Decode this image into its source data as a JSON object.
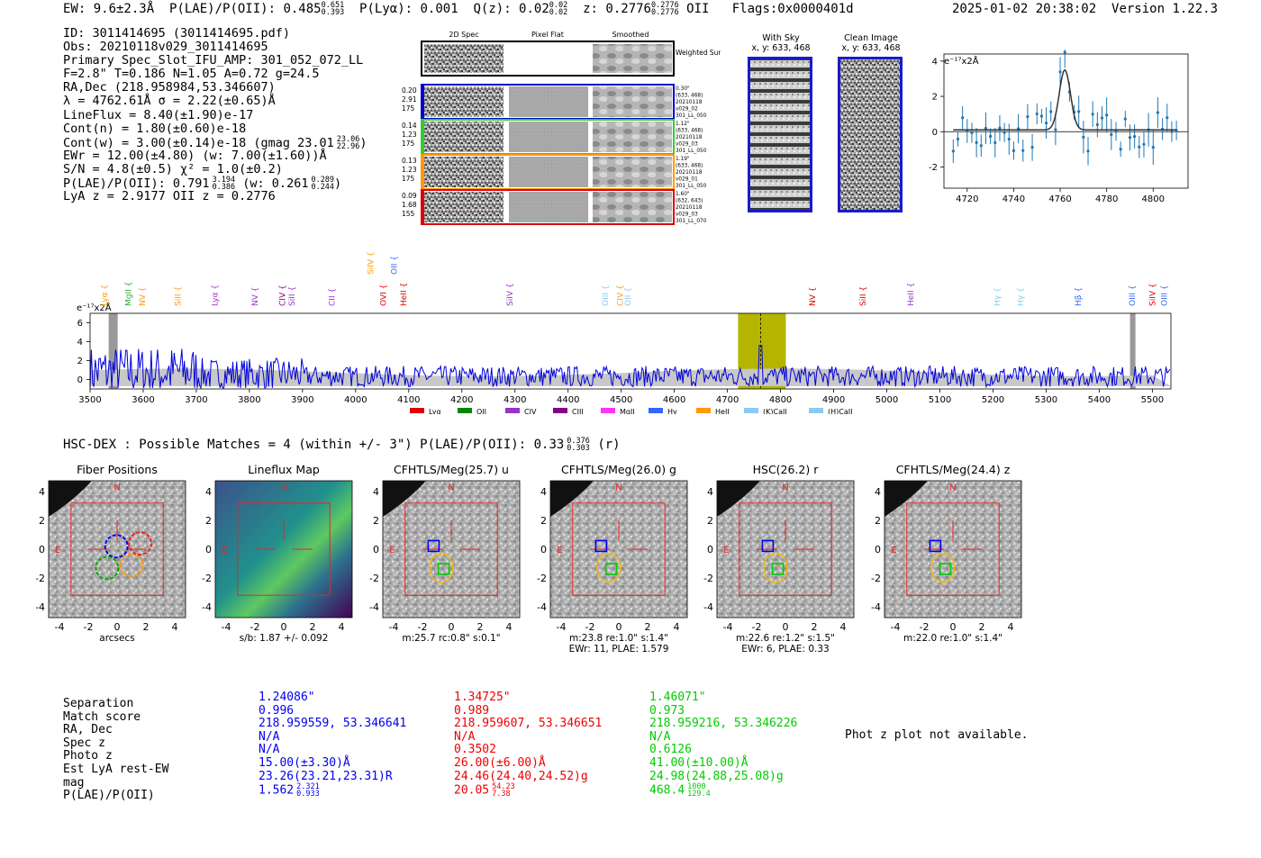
{
  "header": {
    "ew": "EW: 9.6±2.3Å",
    "plae_label": "P(LAE)/P(OII): 0.485",
    "plae_hi": "0.651",
    "plae_lo": "0.393",
    "plya": "P(Lyα): 0.001",
    "qz_label": "Q(z): 0.02",
    "qz_hi": "0.02",
    "qz_lo": "0.02",
    "z_label": "z: 0.2776",
    "z_hi": "0.2776",
    "z_lo": "0.2776",
    "z_line": "OII",
    "flags": "Flags:0x0000401d",
    "datetime": "2025-01-02 20:38:02",
    "version": "Version 1.22.3"
  },
  "info": {
    "id": "ID: 3011414695 (3011414695.pdf)",
    "obs": "Obs: 20210118v029_3011414695",
    "primary": "Primary Spec_Slot_IFU_AMP: 301_052_072_LL",
    "fit": "F=2.8\"  T=0.186  N=1.05  A=0.72  g=24.5",
    "radec": "RA,Dec (218.958984,53.346607)",
    "lambda": "λ = 4762.61Å  σ = 2.22(±0.65)Å",
    "lineflux": "LineFlux = 8.40(±1.90)e-17",
    "cont_n": "Cont(n) = 1.80(±0.60)e-18",
    "cont_w": "Cont(w) = 3.00(±0.14)e-18 (gmag 23.01",
    "cont_w_hi": "23.06",
    "cont_w_lo": "22.96",
    "ewr": "EWr = 12.00(±4.80) (w: 7.00(±1.60))Å",
    "sn": "S/N = 4.8(±0.5)  χ² = 1.0(±0.2)",
    "plae": "P(LAE)/P(OII): 0.791",
    "plae_hi": "3.194",
    "plae_lo": "0.386",
    "plae_w": "(w: 0.261",
    "plae_w_hi": "0.289",
    "plae_w_lo": "0.244",
    "lya_z": "LyA z = 2.9177   OII z = 0.2776"
  },
  "spec2d": {
    "col_titles": [
      "2D Spec",
      "Pixel Flat",
      "Smoothed"
    ],
    "weighted_sum": "Weighted Sum",
    "fibers": [
      {
        "color": "#0000cc",
        "left": [
          "0.20",
          "2.91",
          "175"
        ],
        "right": [
          "0.30\"",
          "(633, 468)",
          "20210118",
          "v029_02",
          "301_LL_050"
        ]
      },
      {
        "color": "#33cc33",
        "left": [
          "0.14",
          "1.23",
          "175"
        ],
        "right": [
          "1.12\"",
          "(633, 468)",
          "20210118",
          "v029_03",
          "301_LL_050"
        ]
      },
      {
        "color": "#ff9900",
        "left": [
          "0.13",
          "1.23",
          "175"
        ],
        "right": [
          "1.19\"",
          "(633, 468)",
          "20210118",
          "v029_01",
          "301_LL_050"
        ]
      },
      {
        "color": "#dd0000",
        "left": [
          "0.09",
          "1.68",
          "155"
        ],
        "right": [
          "1.60\"",
          "(632, 643)",
          "20210118",
          "v029_03",
          "301_LL_070"
        ]
      }
    ]
  },
  "skyimg": {
    "with_sky": "With Sky",
    "with_sky_xy": "x, y: 633, 468",
    "clean": "Clean Image",
    "clean_xy": "x, y: 633, 468"
  },
  "zoom_spec": {
    "unit": "e⁻¹⁷x2Å",
    "x_ticks": [
      4720,
      4740,
      4760,
      4780,
      4800
    ],
    "y_ticks": [
      -2,
      0,
      2,
      4
    ],
    "x_range": [
      4710,
      4815
    ],
    "y_range": [
      -3.2,
      4.4
    ],
    "color": "#1f77b4"
  },
  "full_spec": {
    "unit": "e⁻¹⁷x2Å",
    "x_ticks": [
      3500,
      3600,
      3700,
      3800,
      3900,
      4000,
      4100,
      4200,
      4300,
      4400,
      4500,
      4600,
      4700,
      4800,
      4900,
      5000,
      5100,
      5200,
      5300,
      5400,
      5500
    ],
    "y_ticks": [
      0,
      2,
      4,
      6
    ],
    "x_range": [
      3500,
      5535
    ],
    "y_range": [
      -1,
      7
    ],
    "highlight": [
      4720,
      4810
    ],
    "line_marker": 4762.6,
    "line_labels": [
      {
        "t": "Lyα",
        "w": 3527,
        "c": "#ff9900"
      },
      {
        "t": "MgII",
        "w": 3572,
        "c": "#33aa33"
      },
      {
        "t": "NV",
        "w": 3598,
        "c": "#ff9900"
      },
      {
        "t": "SiII",
        "w": 3665,
        "c": "#ff9900"
      },
      {
        "t": "Lyα",
        "w": 3735,
        "c": "#9933cc"
      },
      {
        "t": "NV",
        "w": 3810,
        "c": "#9933cc"
      },
      {
        "t": "CIV",
        "w": 3862,
        "c": "#880088"
      },
      {
        "t": "SiII",
        "w": 3880,
        "c": "#9933cc"
      },
      {
        "t": "CII",
        "w": 3955,
        "c": "#9933cc"
      },
      {
        "t": "OVI",
        "w": 4052,
        "c": "#dd0000"
      },
      {
        "t": "HeII",
        "w": 4090,
        "c": "#dd0000"
      },
      {
        "t": "SiIV",
        "w": 4028,
        "c": "#ff9900",
        "high": true
      },
      {
        "t": "OII",
        "w": 4072,
        "c": "#3366ff",
        "high": true
      },
      {
        "t": "SiIV",
        "w": 4290,
        "c": "#9933cc"
      },
      {
        "t": "OIII",
        "w": 4470,
        "c": "#88ccee"
      },
      {
        "t": "CIV",
        "w": 4498,
        "c": "#ff9900"
      },
      {
        "t": "OII",
        "w": 4512,
        "c": "#88ccee"
      },
      {
        "t": "NV",
        "w": 4860,
        "c": "#dd0000"
      },
      {
        "t": "SiII",
        "w": 4955,
        "c": "#dd0000"
      },
      {
        "t": "HeII",
        "w": 5045,
        "c": "#9933cc"
      },
      {
        "t": "Hγ",
        "w": 5208,
        "c": "#88ccee"
      },
      {
        "t": "Hγ",
        "w": 5252,
        "c": "#88ccee"
      },
      {
        "t": "Hβ",
        "w": 5360,
        "c": "#3366ff"
      },
      {
        "t": "OIII",
        "w": 5462,
        "c": "#3366ff"
      },
      {
        "t": "SiIV",
        "w": 5500,
        "c": "#dd0000"
      },
      {
        "t": "OIII",
        "w": 5522,
        "c": "#3366ff"
      }
    ],
    "legend": [
      {
        "t": "Lyα",
        "c": "#dd0000"
      },
      {
        "t": "OII",
        "c": "#008800"
      },
      {
        "t": "CIV",
        "c": "#9933cc"
      },
      {
        "t": "CIII",
        "c": "#880088"
      },
      {
        "t": "MgII",
        "c": "#ff33ff"
      },
      {
        "t": "Hγ",
        "c": "#3366ff"
      },
      {
        "t": "HeII",
        "c": "#ff9900"
      },
      {
        "t": "(K)CaII",
        "c": "#88ccee"
      },
      {
        "t": "(H)CaII",
        "c": "#88ccee"
      }
    ]
  },
  "hsc": {
    "title": "HSC-DEX : Possible Matches = 4 (within +/- 3\")  P(LAE)/P(OII): 0.33",
    "p_hi": "0.376",
    "p_lo": "0.303",
    "p_band": "(r)"
  },
  "cutouts": [
    {
      "title": "Fiber Positions",
      "xlabel": "arcsecs",
      "sub": ""
    },
    {
      "title": "Lineflux Map",
      "xlabel": "s/b: 1.87 +/- 0.092",
      "sub": ""
    },
    {
      "title": "CFHTLS/Meg(25.7) u",
      "xlabel": "m:25.7 rc:0.8\"  s:0.1\"",
      "sub": ""
    },
    {
      "title": "CFHTLS/Meg(26.0) g",
      "xlabel": "m:23.8  re:1.0\"  s:1.4\"",
      "sub": "EWr: 11, PLAE: 1.579"
    },
    {
      "title": "HSC(26.2) r",
      "xlabel": "m:22.6  re:1.2\"  s:1.5\"",
      "sub": "EWr: 6, PLAE: 0.33"
    },
    {
      "title": "CFHTLS/Meg(24.4) z",
      "xlabel": "m:22.0  re:1.0\"  s:1.4\"",
      "sub": ""
    }
  ],
  "cutout_axis": {
    "ticks": [
      -4,
      -2,
      0,
      2,
      4
    ],
    "compass_n": "N",
    "compass_e": "E"
  },
  "candidates": {
    "labels": [
      "Separation",
      "Match score",
      "RA, Dec",
      "Spec z",
      "Photo z",
      "Est LyA rest-EW",
      "mag",
      "P(LAE)/P(OII)"
    ],
    "columns": [
      {
        "color": "#0000ee",
        "values": [
          "1.24086\"",
          "0.996",
          "218.959559, 53.346641",
          "N/A",
          "N/A",
          "15.00(±3.30)Å",
          "23.26(23.21,23.31)R",
          "1.562"
        ],
        "p_hi": "2.321",
        "p_lo": "0.933"
      },
      {
        "color": "#ee0000",
        "values": [
          "1.34725\"",
          "0.989",
          "218.959607, 53.346651",
          "N/A",
          "0.3502",
          "26.00(±6.00)Å",
          "24.46(24.40,24.52)g",
          "20.05"
        ],
        "p_hi": "54.23",
        "p_lo": "7.38"
      },
      {
        "color": "#00cc00",
        "values": [
          "1.46071\"",
          "0.973",
          "218.959216, 53.346226",
          "N/A",
          "0.6126",
          "41.00(±10.00)Å",
          "24.98(24.88,25.08)g",
          "468.4"
        ],
        "p_hi": "1000",
        "p_lo": "129.4"
      }
    ],
    "phot_z": "Phot z plot not available."
  }
}
